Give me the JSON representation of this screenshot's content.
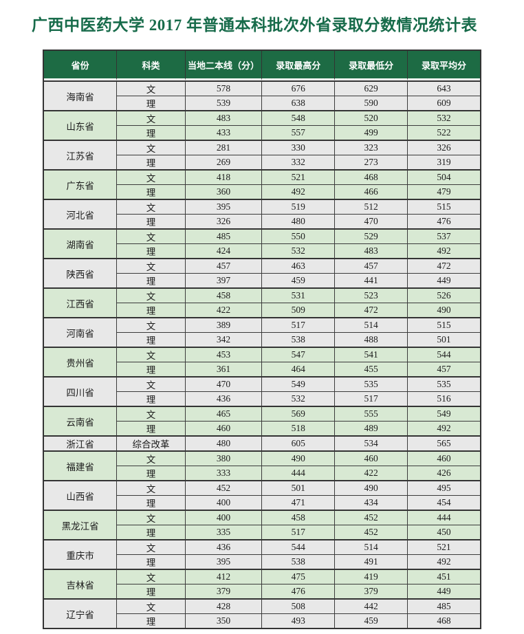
{
  "title": "广西中医药大学 2017 年普通本科批次外省录取分数情况统计表",
  "colors": {
    "header_bg": "#1d6b44",
    "header_text": "#ffffff",
    "title_text": "#176b4a",
    "row_gray": "#e8e8e8",
    "row_green": "#d8e9d3",
    "border": "#333333"
  },
  "table": {
    "headers": [
      "省份",
      "科类",
      "当地二本线（分）",
      "录取最高分",
      "录取最低分",
      "录取平均分"
    ],
    "groups": [
      {
        "province": "海南省",
        "tint": "gray",
        "rows": [
          [
            "文",
            578,
            676,
            629,
            643
          ],
          [
            "理",
            539,
            638,
            590,
            609
          ]
        ]
      },
      {
        "province": "山东省",
        "tint": "green",
        "rows": [
          [
            "文",
            483,
            548,
            520,
            532
          ],
          [
            "理",
            433,
            557,
            499,
            522
          ]
        ]
      },
      {
        "province": "江苏省",
        "tint": "gray",
        "rows": [
          [
            "文",
            281,
            330,
            323,
            326
          ],
          [
            "理",
            269,
            332,
            273,
            319
          ]
        ]
      },
      {
        "province": "广东省",
        "tint": "green",
        "rows": [
          [
            "文",
            418,
            521,
            468,
            504
          ],
          [
            "理",
            360,
            492,
            466,
            479
          ]
        ]
      },
      {
        "province": "河北省",
        "tint": "gray",
        "rows": [
          [
            "文",
            395,
            519,
            512,
            515
          ],
          [
            "理",
            326,
            480,
            470,
            476
          ]
        ]
      },
      {
        "province": "湖南省",
        "tint": "green",
        "rows": [
          [
            "文",
            485,
            550,
            529,
            537
          ],
          [
            "理",
            424,
            532,
            483,
            492
          ]
        ]
      },
      {
        "province": "陕西省",
        "tint": "gray",
        "rows": [
          [
            "文",
            457,
            463,
            457,
            472
          ],
          [
            "理",
            397,
            459,
            441,
            449
          ]
        ]
      },
      {
        "province": "江西省",
        "tint": "green",
        "rows": [
          [
            "文",
            458,
            531,
            523,
            526
          ],
          [
            "理",
            422,
            509,
            472,
            490
          ]
        ]
      },
      {
        "province": "河南省",
        "tint": "gray",
        "rows": [
          [
            "文",
            389,
            517,
            514,
            515
          ],
          [
            "理",
            342,
            538,
            488,
            501
          ]
        ]
      },
      {
        "province": "贵州省",
        "tint": "green",
        "rows": [
          [
            "文",
            453,
            547,
            541,
            544
          ],
          [
            "理",
            361,
            464,
            455,
            457
          ]
        ]
      },
      {
        "province": "四川省",
        "tint": "gray",
        "rows": [
          [
            "文",
            470,
            549,
            535,
            535
          ],
          [
            "理",
            436,
            532,
            517,
            516
          ]
        ]
      },
      {
        "province": "云南省",
        "tint": "green",
        "rows": [
          [
            "文",
            465,
            569,
            555,
            549
          ],
          [
            "理",
            460,
            518,
            489,
            492
          ]
        ]
      },
      {
        "province": "浙江省",
        "tint": "gray",
        "rows": [
          [
            "综合改革",
            480,
            605,
            534,
            565
          ]
        ]
      },
      {
        "province": "福建省",
        "tint": "green",
        "rows": [
          [
            "文",
            380,
            490,
            460,
            460
          ],
          [
            "理",
            333,
            444,
            422,
            426
          ]
        ]
      },
      {
        "province": "山西省",
        "tint": "gray",
        "rows": [
          [
            "文",
            452,
            501,
            490,
            495
          ],
          [
            "理",
            400,
            471,
            434,
            454
          ]
        ]
      },
      {
        "province": "黑龙江省",
        "tint": "green",
        "rows": [
          [
            "文",
            400,
            458,
            452,
            444
          ],
          [
            "理",
            335,
            517,
            452,
            450
          ]
        ]
      },
      {
        "province": "重庆市",
        "tint": "gray",
        "rows": [
          [
            "文",
            436,
            544,
            514,
            521
          ],
          [
            "理",
            395,
            538,
            491,
            492
          ]
        ]
      },
      {
        "province": "吉林省",
        "tint": "green",
        "rows": [
          [
            "文",
            412,
            475,
            419,
            451
          ],
          [
            "理",
            379,
            476,
            379,
            449
          ]
        ]
      },
      {
        "province": "辽宁省",
        "tint": "gray",
        "rows": [
          [
            "文",
            428,
            508,
            442,
            485
          ],
          [
            "理",
            350,
            493,
            459,
            468
          ]
        ]
      }
    ]
  }
}
